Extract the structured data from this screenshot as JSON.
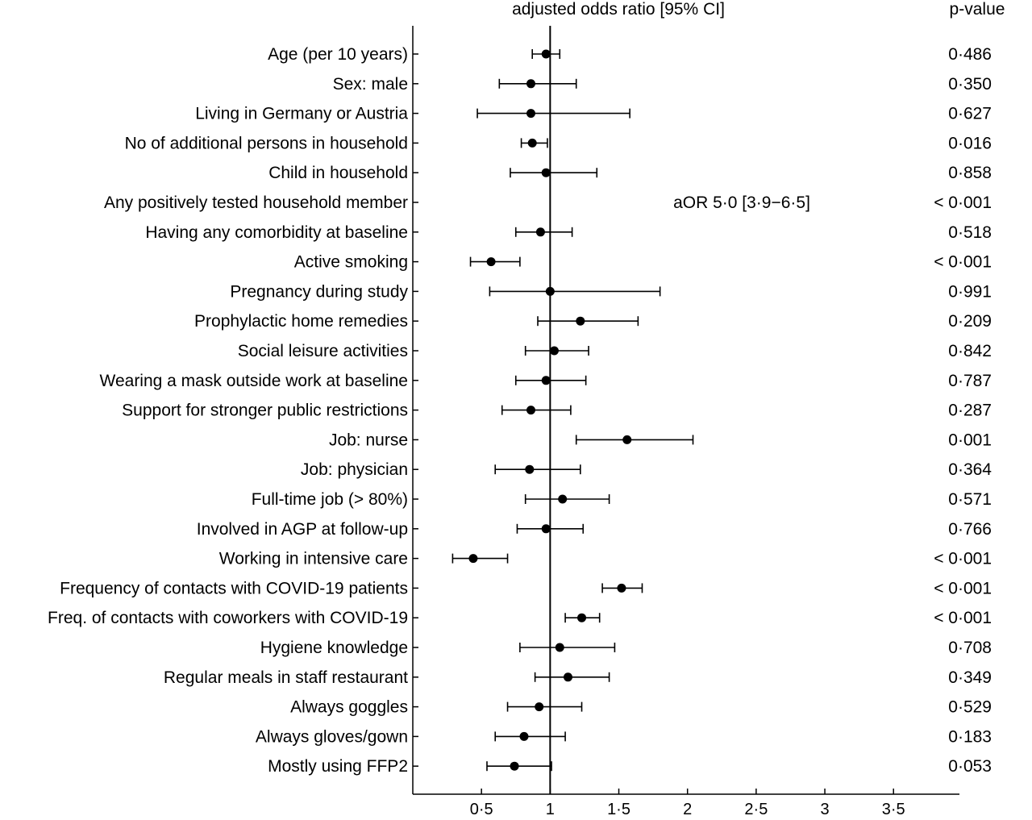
{
  "chart_data": {
    "type": "scatter",
    "subtype": "forest-plot",
    "header": {
      "title": "adjusted odds ratio [95% CI]",
      "pvalue_header": "p-value"
    },
    "reference_line": 1,
    "xlim": [
      0,
      3.98
    ],
    "x_ticks": [
      {
        "value": 0.5,
        "label": "0·5"
      },
      {
        "value": 1,
        "label": "1"
      },
      {
        "value": 1.5,
        "label": "1·5"
      },
      {
        "value": 2,
        "label": "2"
      },
      {
        "value": 2.5,
        "label": "2·5"
      },
      {
        "value": 3,
        "label": "3"
      },
      {
        "value": 3.5,
        "label": "3·5"
      }
    ],
    "rows": [
      {
        "label": "Age (per 10 years)",
        "or": 0.97,
        "lo": 0.87,
        "hi": 1.07,
        "p": "0·486"
      },
      {
        "label": "Sex: male",
        "or": 0.86,
        "lo": 0.63,
        "hi": 1.19,
        "p": "0·350"
      },
      {
        "label": "Living in Germany or Austria",
        "or": 0.86,
        "lo": 0.47,
        "hi": 1.58,
        "p": "0·627"
      },
      {
        "label": "No of additional persons in household",
        "or": 0.87,
        "lo": 0.79,
        "hi": 0.98,
        "p": "0·016"
      },
      {
        "label": "Child in household",
        "or": 0.97,
        "lo": 0.71,
        "hi": 1.34,
        "p": "0·858"
      },
      {
        "label": "Any positively tested household member",
        "or": null,
        "lo": null,
        "hi": null,
        "p": "< 0·001",
        "annotation": "aOR  5·0 [3·9−6·5]"
      },
      {
        "label": "Having any comorbidity at baseline",
        "or": 0.93,
        "lo": 0.75,
        "hi": 1.16,
        "p": "0·518"
      },
      {
        "label": "Active smoking",
        "or": 0.57,
        "lo": 0.42,
        "hi": 0.78,
        "p": "< 0·001"
      },
      {
        "label": "Pregnancy during study",
        "or": 1.0,
        "lo": 0.56,
        "hi": 1.8,
        "p": "0·991"
      },
      {
        "label": "Prophylactic home remedies",
        "or": 1.22,
        "lo": 0.91,
        "hi": 1.64,
        "p": "0·209"
      },
      {
        "label": "Social leisure activities",
        "or": 1.03,
        "lo": 0.82,
        "hi": 1.28,
        "p": "0·842"
      },
      {
        "label": "Wearing a mask outside work at baseline",
        "or": 0.97,
        "lo": 0.75,
        "hi": 1.26,
        "p": "0·787"
      },
      {
        "label": "Support for stronger public restrictions",
        "or": 0.86,
        "lo": 0.65,
        "hi": 1.15,
        "p": "0·287"
      },
      {
        "label": "Job: nurse",
        "or": 1.56,
        "lo": 1.19,
        "hi": 2.04,
        "p": "0·001"
      },
      {
        "label": "Job: physician",
        "or": 0.85,
        "lo": 0.6,
        "hi": 1.22,
        "p": "0·364"
      },
      {
        "label": "Full-time job (> 80%)",
        "or": 1.09,
        "lo": 0.82,
        "hi": 1.43,
        "p": "0·571"
      },
      {
        "label": "Involved in AGP at follow-up",
        "or": 0.97,
        "lo": 0.76,
        "hi": 1.24,
        "p": "0·766"
      },
      {
        "label": "Working in intensive care",
        "or": 0.44,
        "lo": 0.29,
        "hi": 0.69,
        "p": "< 0·001"
      },
      {
        "label": "Frequency of contacts with COVID-19 patients",
        "or": 1.52,
        "lo": 1.38,
        "hi": 1.67,
        "p": "< 0·001"
      },
      {
        "label": "Freq. of contacts with coworkers with COVID-19",
        "or": 1.23,
        "lo": 1.11,
        "hi": 1.36,
        "p": "< 0·001"
      },
      {
        "label": "Hygiene knowledge",
        "or": 1.07,
        "lo": 0.78,
        "hi": 1.47,
        "p": "0·708"
      },
      {
        "label": "Regular meals in staff restaurant",
        "or": 1.13,
        "lo": 0.89,
        "hi": 1.43,
        "p": "0·349"
      },
      {
        "label": "Always goggles",
        "or": 0.92,
        "lo": 0.69,
        "hi": 1.23,
        "p": "0·529"
      },
      {
        "label": "Always gloves/gown",
        "or": 0.81,
        "lo": 0.6,
        "hi": 1.11,
        "p": "0·183"
      },
      {
        "label": "Mostly using FFP2",
        "or": 0.74,
        "lo": 0.54,
        "hi": 1.01,
        "p": "0·053"
      }
    ]
  }
}
